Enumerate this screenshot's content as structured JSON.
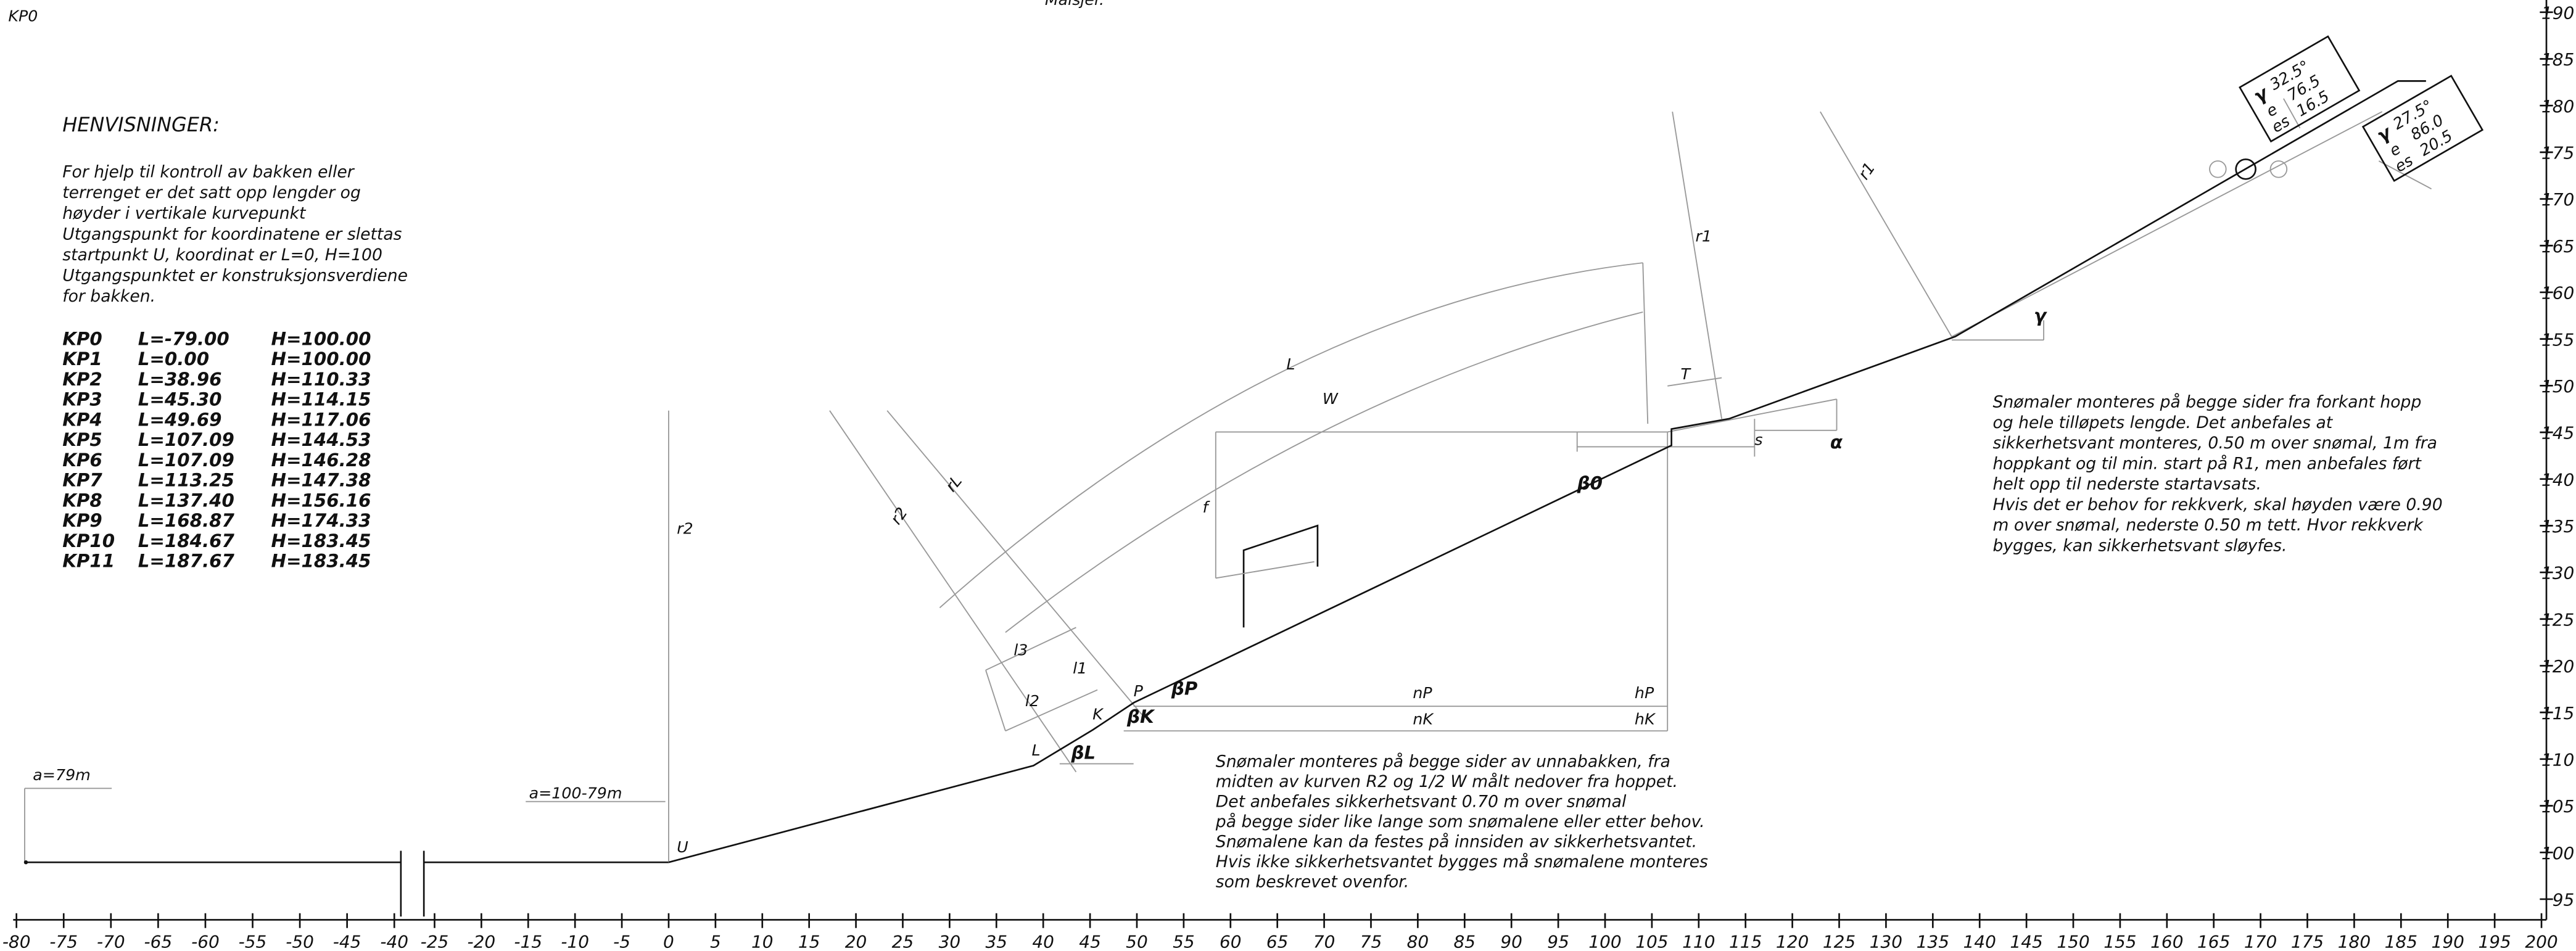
{
  "header": {
    "corner": "KP0",
    "top": "Målsjer."
  },
  "references": {
    "title": "HENVISNINGER:",
    "lines": [
      "For hjelp til kontroll av bakken eller",
      "terrenget er det satt opp lengder og",
      "høyder i vertikale kurvepunkt",
      "Utgangspunkt for koordinatene er slettas",
      "startpunkt U, koordinat er L=0, H=100",
      "Utgangspunktet er konstruksjonsverdiene",
      "for bakken."
    ],
    "points": [
      {
        "name": "KP0",
        "L": {
          "value": -79.0,
          "label": "L=-79.00"
        },
        "H": {
          "value": 100.0,
          "label": "H=100.00"
        }
      },
      {
        "name": "KP1",
        "L": {
          "value": 0.0,
          "label": "L=0.00"
        },
        "H": {
          "value": 100.0,
          "label": "H=100.00"
        }
      },
      {
        "name": "KP2",
        "L": {
          "value": 38.96,
          "label": "L=38.96"
        },
        "H": {
          "value": 110.33,
          "label": "H=110.33"
        }
      },
      {
        "name": "KP3",
        "L": {
          "value": 45.3,
          "label": "L=45.30"
        },
        "H": {
          "value": 114.15,
          "label": "H=114.15"
        }
      },
      {
        "name": "KP4",
        "L": {
          "value": 49.69,
          "label": "L=49.69"
        },
        "H": {
          "value": 117.06,
          "label": "H=117.06"
        }
      },
      {
        "name": "KP5",
        "L": {
          "value": 107.09,
          "label": "L=107.09"
        },
        "H": {
          "value": 144.53,
          "label": "H=144.53"
        }
      },
      {
        "name": "KP6",
        "L": {
          "value": 107.09,
          "label": "L=107.09"
        },
        "H": {
          "value": 146.28,
          "label": "H=146.28"
        }
      },
      {
        "name": "KP7",
        "L": {
          "value": 113.25,
          "label": "L=113.25"
        },
        "H": {
          "value": 147.38,
          "label": "H=147.38"
        }
      },
      {
        "name": "KP8",
        "L": {
          "value": 137.4,
          "label": "L=137.40"
        },
        "H": {
          "value": 156.16,
          "label": "H=156.16"
        }
      },
      {
        "name": "KP9",
        "L": {
          "value": 168.87,
          "label": "L=168.87"
        },
        "H": {
          "value": 174.33,
          "label": "H=174.33"
        }
      },
      {
        "name": "KP10",
        "L": {
          "value": 184.67,
          "label": "L=184.67"
        },
        "H": {
          "value": 183.45,
          "label": "H=183.45"
        }
      },
      {
        "name": "KP11",
        "L": {
          "value": 187.67,
          "label": "L=187.67"
        },
        "H": {
          "value": 183.45,
          "label": "H=183.45"
        }
      }
    ]
  },
  "notes": {
    "right": [
      "Snømaler monteres på begge sider fra forkant hopp",
      "og hele tilløpets lengde. Det anbefales at",
      "sikkerhetsvant monteres, 0.50 m over snømal, 1m fra",
      "hoppkant og til min. start på R1, men anbefales ført",
      "helt opp til nederste startavsats.",
      "Hvis det er behov for rekkverk, skal høyden være 0.90",
      "m  over snømal, nederste 0.50 m tett. Hvor rekkverk",
      "bygges, kan sikkerhetsvant sløyfes."
    ],
    "bottom": [
      "Snømaler monteres på begge sider av unnabakken, fra",
      "midten av kurven R2 og 1/2 W målt nedover fra hoppet.",
      "Det anbefales sikkerhetsvant 0.70 m over snømal",
      "på begge sider like lange som snømalene eller etter behov.",
      "Snømalene kan da festes på innsiden av sikkerhetsvantet.",
      "Hvis ikke sikkerhetsvantet bygges må snømalene monteres",
      "som beskrevet ovenfor."
    ]
  },
  "labels": {
    "a79": "a=79m",
    "a100": "a=100-79m",
    "U": "U",
    "r2v": "r2",
    "r2": "r2",
    "rL": "rL",
    "L": "L",
    "W": "W",
    "f": "f",
    "l3": "l3",
    "l1": "l1",
    "l2": "l2",
    "K": "K",
    "P": "P",
    "Lp": "L",
    "betaL": "βL",
    "betaK": "βK",
    "betaP": "βP",
    "nP": "nP",
    "hP": "hP",
    "nK": "nK",
    "hK": "hK",
    "T": "T",
    "r1a": "r1",
    "r1b": "r1",
    "s": "s",
    "alpha": "α",
    "beta0": "β0",
    "gamma": "γ",
    "gamma1": {
      "angle_label": "γ",
      "angle": "32.5°",
      "e_label": "e",
      "e": "76.5",
      "es_label": "es",
      "es": "16.5"
    },
    "gamma2": {
      "angle_label": "γ",
      "angle": "27.5°",
      "e_label": "e",
      "e": "86.0",
      "es_label": "es",
      "es": "20.5"
    }
  },
  "x_axis": {
    "ticks": [
      -80,
      -75,
      -70,
      -65,
      -60,
      -55,
      -50,
      -45,
      -40,
      -25,
      -20,
      -15,
      -10,
      -5,
      0,
      5,
      10,
      15,
      20,
      25,
      30,
      35,
      40,
      45,
      50,
      55,
      60,
      65,
      70,
      75,
      80,
      85,
      90,
      95,
      100,
      105,
      110,
      115,
      120,
      125,
      130,
      135,
      140,
      145,
      150,
      155,
      160,
      165,
      170,
      175,
      180,
      185,
      190,
      195,
      200
    ]
  },
  "y_axis": {
    "ticks": [
      95,
      100,
      105,
      110,
      115,
      120,
      125,
      130,
      135,
      140,
      145,
      150,
      155,
      160,
      165,
      170,
      175,
      180,
      185,
      190
    ]
  }
}
